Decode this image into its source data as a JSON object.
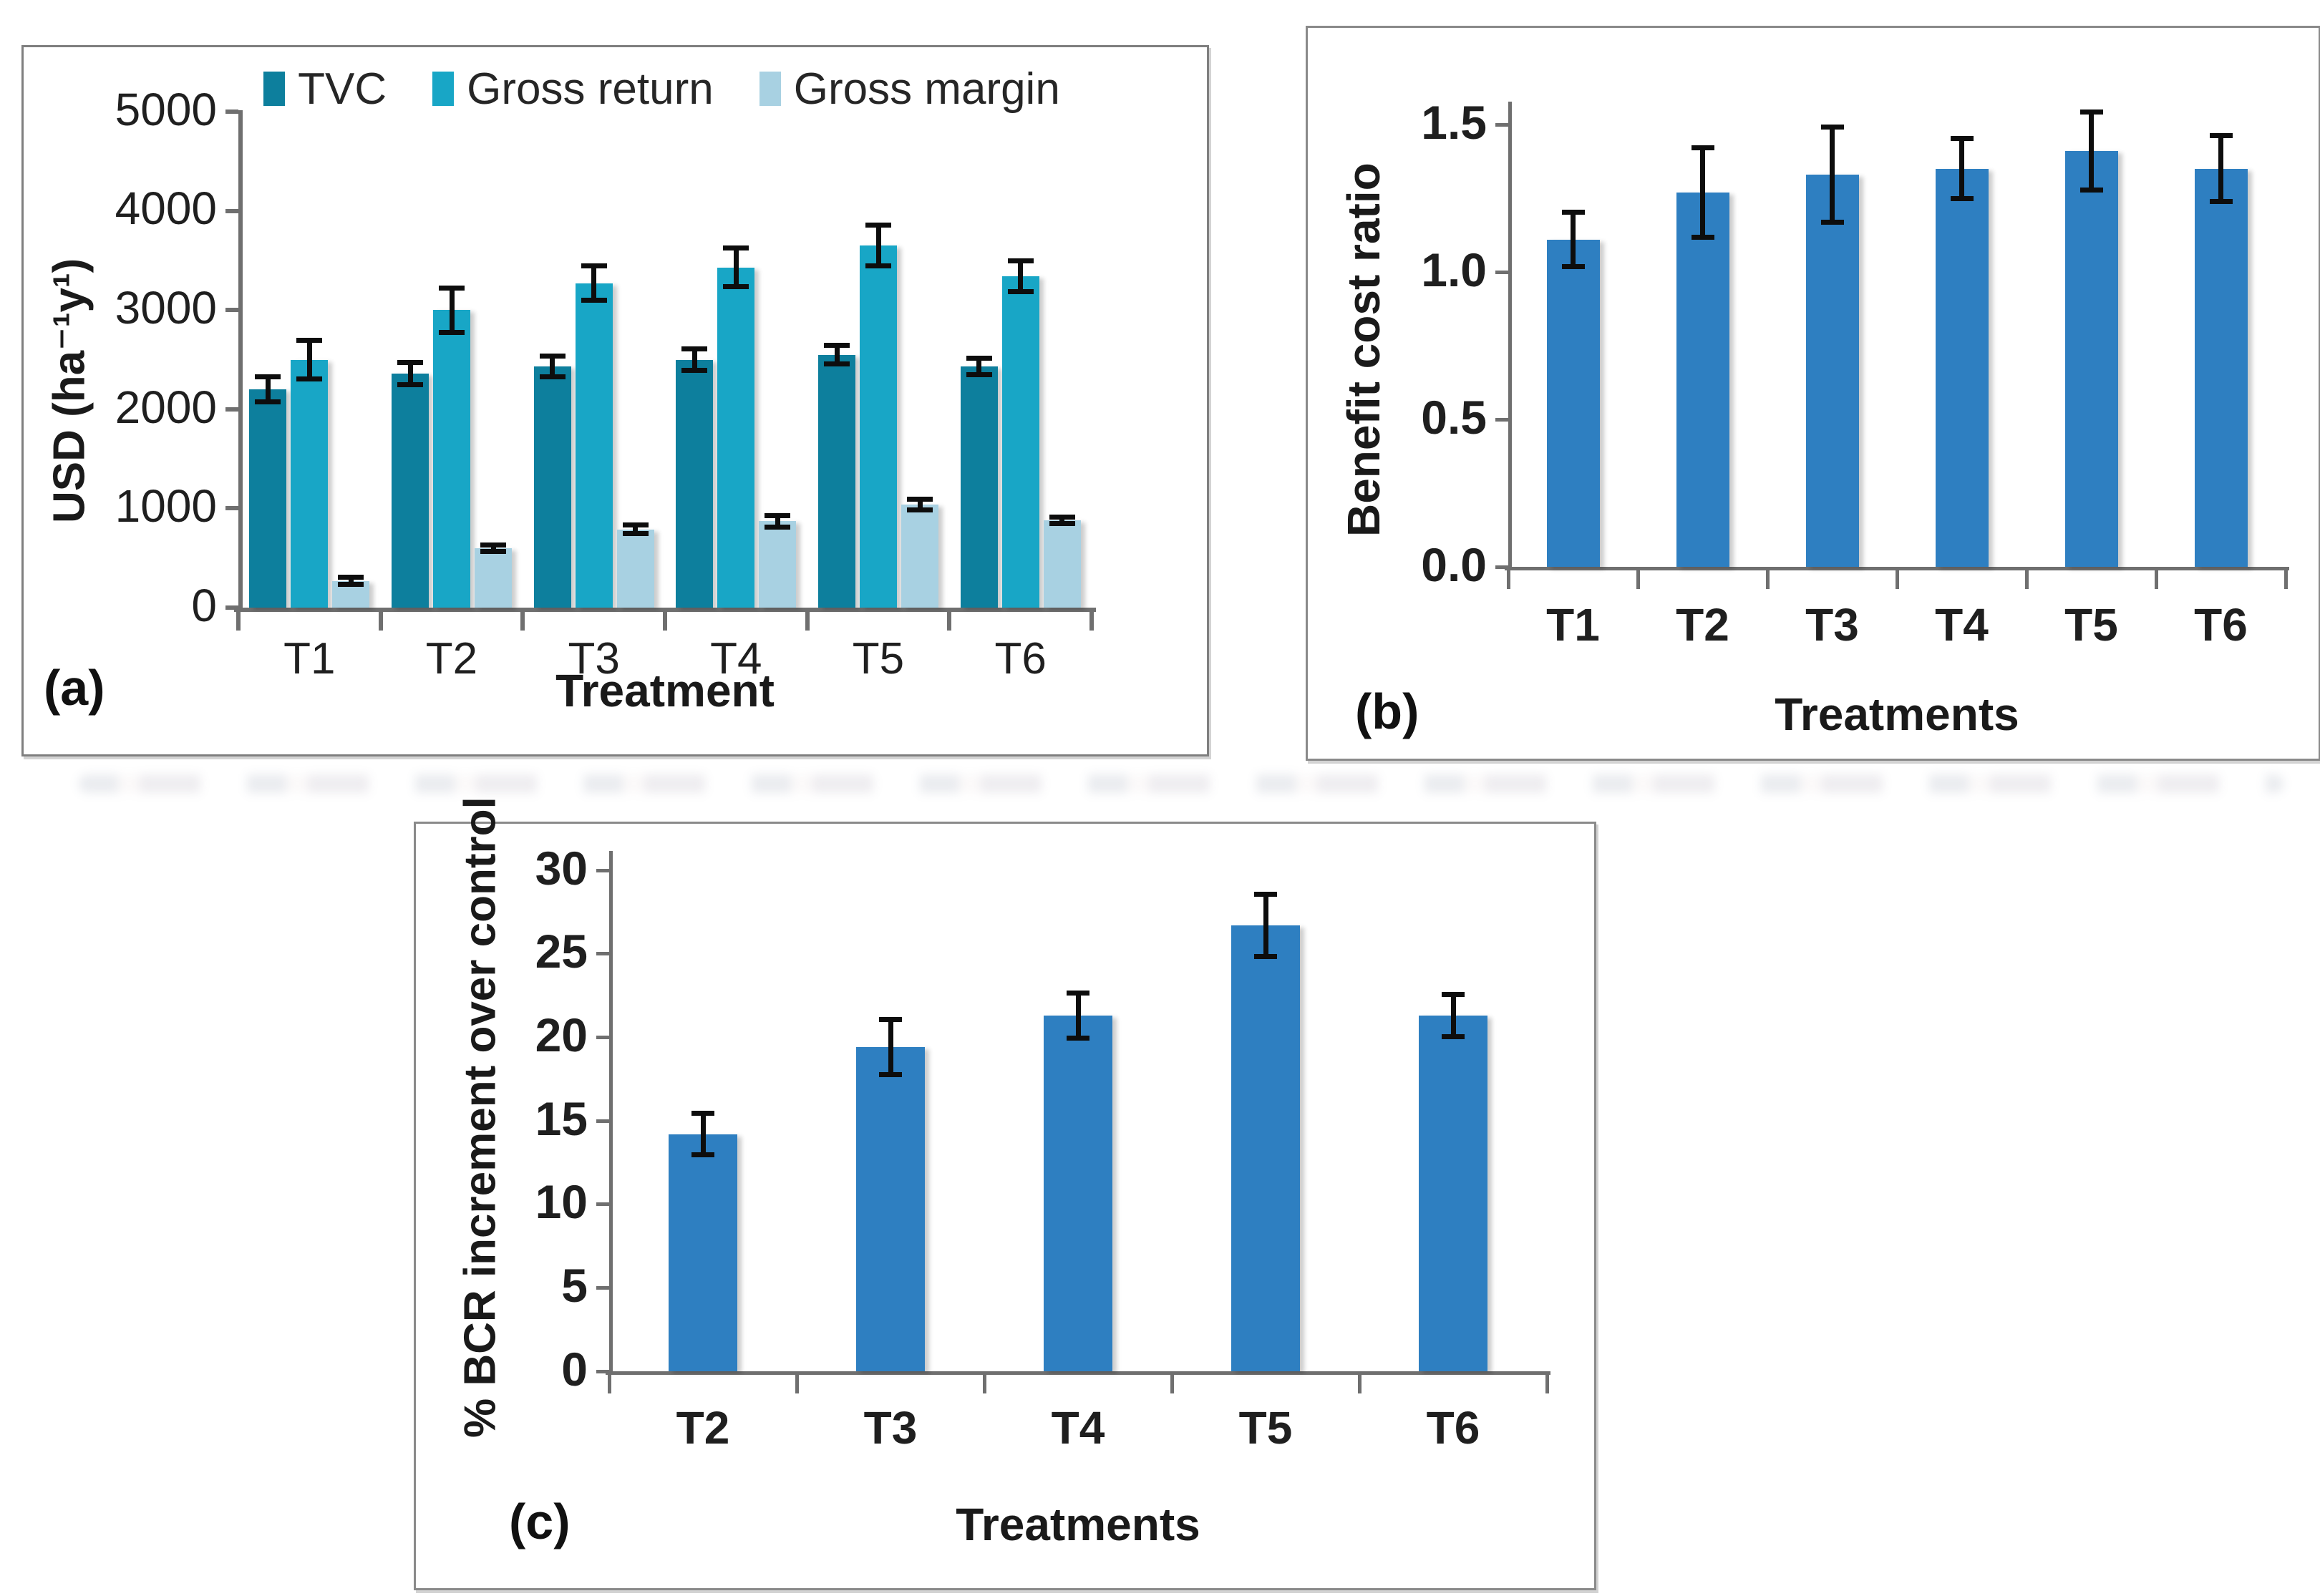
{
  "figure": {
    "background": "#ffffff",
    "axis_color": "#6f6f6f",
    "error_bar_color": "#0d0d0d"
  },
  "chart_data": [
    {
      "id": "a",
      "type": "bar",
      "panel_label": "(a)",
      "title": "",
      "xlabel": "Treatment",
      "ylabel": "USD (ha⁻¹y¹)",
      "ylim": [
        0,
        5000
      ],
      "yticks": [
        0,
        1000,
        2000,
        3000,
        4000,
        5000
      ],
      "ytick_labels": [
        "0",
        "1000",
        "2000",
        "3000",
        "4000",
        "5000"
      ],
      "categories": [
        "T1",
        "T2",
        "T3",
        "T4",
        "T5",
        "T6"
      ],
      "grid": false,
      "legend_position": "top",
      "series": [
        {
          "name": "TVC",
          "color": "#0d7f9d",
          "values": [
            2200,
            2360,
            2430,
            2500,
            2550,
            2430
          ],
          "errors": [
            150,
            140,
            130,
            130,
            120,
            110
          ]
        },
        {
          "name": "Gross return",
          "color": "#18a6c6",
          "values": [
            2500,
            3000,
            3270,
            3430,
            3650,
            3340
          ],
          "errors": [
            220,
            250,
            200,
            220,
            230,
            180
          ]
        },
        {
          "name": "Gross margin",
          "color": "#a8d1e2",
          "values": [
            270,
            600,
            790,
            870,
            1040,
            880
          ],
          "errors": [
            60,
            60,
            70,
            80,
            80,
            60
          ]
        }
      ]
    },
    {
      "id": "b",
      "type": "bar",
      "panel_label": "(b)",
      "title": "",
      "xlabel": "Treatments",
      "ylabel": "Benefit cost ratio",
      "ylim": [
        0,
        1.6
      ],
      "yticks": [
        0,
        0.5,
        1.0,
        1.5
      ],
      "ytick_labels": [
        "0.0",
        "0.5",
        "1.0",
        "1.5"
      ],
      "categories": [
        "T1",
        "T2",
        "T3",
        "T4",
        "T5",
        "T6"
      ],
      "grid": false,
      "legend_position": "none",
      "series": [
        {
          "name": "Benefit cost ratio",
          "color": "#2e7fc1",
          "values": [
            1.11,
            1.27,
            1.33,
            1.35,
            1.41,
            1.35
          ],
          "errors": [
            0.1,
            0.16,
            0.17,
            0.11,
            0.14,
            0.12
          ]
        }
      ]
    },
    {
      "id": "c",
      "type": "bar",
      "panel_label": "(c)",
      "title": "",
      "xlabel": "Treatments",
      "ylabel": "% BCR increment over control",
      "ylim": [
        0,
        30
      ],
      "yticks": [
        0,
        5,
        10,
        15,
        20,
        25,
        30
      ],
      "ytick_labels": [
        "0",
        "5",
        "10",
        "15",
        "20",
        "25",
        "30"
      ],
      "categories": [
        "T2",
        "T3",
        "T4",
        "T5",
        "T6"
      ],
      "grid": false,
      "legend_position": "none",
      "series": [
        {
          "name": "% BCR increment over control",
          "color": "#2e7fc1",
          "values": [
            14.2,
            19.4,
            21.3,
            26.7,
            21.3
          ],
          "errors": [
            1.4,
            1.8,
            1.5,
            2.0,
            1.4
          ]
        }
      ]
    }
  ]
}
